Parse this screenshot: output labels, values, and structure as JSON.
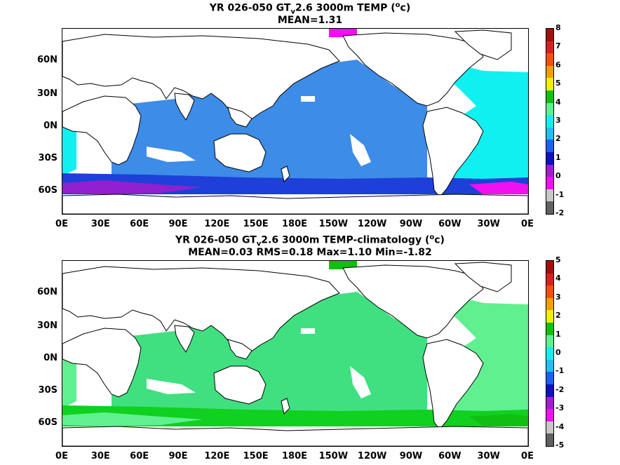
{
  "panels": [
    {
      "title_pre": "YR 026-050 GT",
      "title_sub": "v",
      "title_mid": "2.6 3000m TEMP (",
      "title_sup": "o",
      "title_post": "c)",
      "stats": "MEAN=1.31",
      "colorbar_labels": [
        "8",
        "7",
        "6",
        "5",
        "4",
        "3",
        "2",
        "1",
        "0",
        "-1",
        "-2"
      ],
      "colorbar_colors": [
        "#a01010",
        "#d82020",
        "#f05010",
        "#f0a000",
        "#f0f000",
        "#10c010",
        "#60f090",
        "#10f0f0",
        "#20c0f0",
        "#2060f0",
        "#1010c0",
        "#a020d0",
        "#f010f0",
        "#c8c8c8",
        "#606060"
      ],
      "ocean_color": "#3c8ce8",
      "south_color": "#1e40d8",
      "deep_south_color": "#9020d0",
      "atlantic_color": "#10f0f0",
      "accent_color": "#f010f0"
    },
    {
      "title_pre": "YR 026-050 GT",
      "title_sub": "v",
      "title_mid": "2.6 3000m TEMP-climatology (",
      "title_sup": "o",
      "title_post": "c)",
      "stats": "MEAN=0.03   RMS=0.18   Max=1.10   Min=-1.82",
      "colorbar_labels": [
        "5",
        "4",
        "3",
        "2",
        "1",
        "0",
        "-1",
        "-2",
        "-3",
        "-4",
        "-5"
      ],
      "colorbar_colors": [
        "#a01010",
        "#d82020",
        "#f05010",
        "#f0a000",
        "#f0f000",
        "#10c010",
        "#60f090",
        "#10f0f0",
        "#20c0f0",
        "#2060f0",
        "#1010c0",
        "#a020d0",
        "#f010f0",
        "#c8c8c8",
        "#606060"
      ],
      "ocean_color": "#40e080",
      "south_color": "#10d020",
      "deep_south_color": "#60f090",
      "atlantic_color": "#60f090",
      "accent_color": "#10c010"
    }
  ],
  "lat_labels": [
    "60N",
    "30N",
    "0N",
    "30S",
    "60S"
  ],
  "lon_labels": [
    "0E",
    "30E",
    "60E",
    "90E",
    "120E",
    "150E",
    "180E",
    "150W",
    "120W",
    "90W",
    "60W",
    "30W",
    "0E"
  ]
}
